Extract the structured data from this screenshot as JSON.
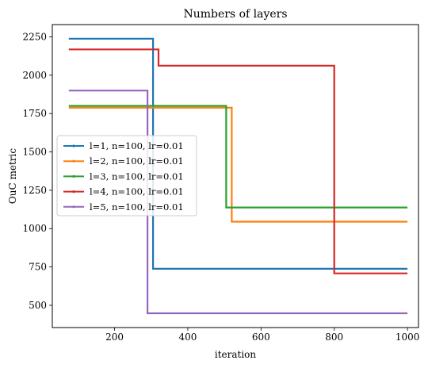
{
  "chart_data": {
    "type": "line",
    "title": "Numbers of layers",
    "xlabel": "iteration",
    "ylabel": "OuC metric",
    "xlim": [
      30,
      1030
    ],
    "ylim": [
      355,
      2330
    ],
    "xticks": [
      200,
      400,
      600,
      800,
      1000
    ],
    "yticks": [
      500,
      750,
      1000,
      1250,
      1500,
      1750,
      2000,
      2250
    ],
    "grid": false,
    "legend_position": "center-left",
    "step": true,
    "series": [
      {
        "name": "l=1, n=100, lr=0.01",
        "color": "#1f77b4",
        "x": [
          75,
          305,
          305,
          1000
        ],
        "y": [
          2238,
          2238,
          738,
          738
        ]
      },
      {
        "name": "l=2, n=100, lr=0.01",
        "color": "#ff7f0e",
        "x": [
          75,
          520,
          520,
          1000
        ],
        "y": [
          1788,
          1788,
          1045,
          1045
        ]
      },
      {
        "name": "l=3, n=100, lr=0.01",
        "color": "#2ca02c",
        "x": [
          75,
          505,
          505,
          1000
        ],
        "y": [
          1800,
          1800,
          1138,
          1138
        ]
      },
      {
        "name": "l=4, n=100, lr=0.01",
        "color": "#d62728",
        "x": [
          75,
          320,
          320,
          800,
          800,
          1000
        ],
        "y": [
          2168,
          2168,
          2062,
          2062,
          708,
          708
        ]
      },
      {
        "name": "l=5, n=100, lr=0.01",
        "color": "#9467bd",
        "x": [
          75,
          290,
          290,
          1000
        ],
        "y": [
          1900,
          1900,
          448,
          448
        ]
      }
    ]
  }
}
